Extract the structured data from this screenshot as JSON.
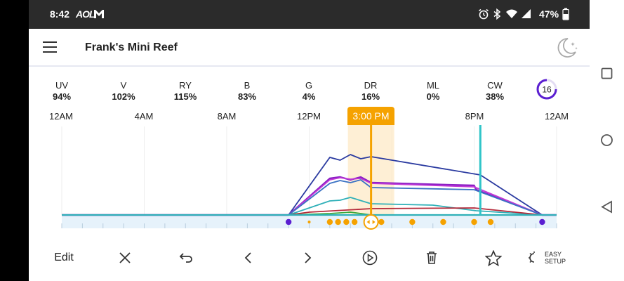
{
  "status_bar": {
    "time": "8:42",
    "aol": "AOL",
    "battery": "47%"
  },
  "header": {
    "title": "Frank's Mini Reef"
  },
  "channels": [
    {
      "name": "UV",
      "value": "94%"
    },
    {
      "name": "V",
      "value": "102%"
    },
    {
      "name": "RY",
      "value": "115%"
    },
    {
      "name": "B",
      "value": "83%"
    },
    {
      "name": "G",
      "value": "4%"
    },
    {
      "name": "DR",
      "value": "16%"
    },
    {
      "name": "ML",
      "value": "0%"
    },
    {
      "name": "CW",
      "value": "38%"
    }
  ],
  "ring_badge": {
    "value": "16"
  },
  "timeline": {
    "ticks": [
      "12AM",
      "4AM",
      "8AM",
      "12PM",
      "8PM",
      "12AM"
    ],
    "cursor_label": "3:00 PM",
    "marker_hour_partial": "M"
  },
  "toolbar": {
    "edit_label": "Edit",
    "easy_setup_line1": "EASY",
    "easy_setup_line2": "SETUP"
  },
  "chart_data": {
    "type": "line",
    "x_unit": "hour of day",
    "xlim": [
      0,
      24
    ],
    "ylim": [
      0,
      120
    ],
    "cursor_x": 15,
    "series": [
      {
        "color": "#2a3aa0",
        "x": [
          0,
          11,
          13,
          13.5,
          14,
          14.5,
          15,
          20.3,
          23.3,
          24
        ],
        "y": [
          0,
          0,
          82,
          78,
          86,
          80,
          83,
          57,
          0,
          0
        ]
      },
      {
        "color": "#8b1fc4",
        "x": [
          0,
          11,
          13,
          13.5,
          14,
          14.5,
          15,
          20,
          20.1,
          23.3,
          24
        ],
        "y": [
          0,
          0,
          52,
          54,
          50,
          54,
          46,
          42,
          36,
          0,
          0
        ]
      },
      {
        "color": "#c03ad6",
        "x": [
          0,
          11,
          13,
          13.5,
          14,
          14.5,
          15,
          20,
          23.3,
          24
        ],
        "y": [
          0,
          0,
          50,
          53,
          51,
          52,
          45,
          40,
          0,
          0
        ]
      },
      {
        "color": "#3a72c4",
        "x": [
          0,
          11,
          13,
          13.5,
          14,
          14.5,
          15,
          20,
          23.3,
          24
        ],
        "y": [
          0,
          0,
          45,
          49,
          46,
          50,
          39,
          36,
          0,
          0
        ]
      },
      {
        "color": "#2fb0b8",
        "x": [
          0,
          11,
          13,
          13.5,
          14,
          15,
          18,
          20.1,
          23.3,
          24
        ],
        "y": [
          0,
          0,
          20,
          21,
          25,
          16,
          14,
          6,
          0,
          0
        ]
      },
      {
        "color": "#b52a3a",
        "x": [
          0,
          11,
          12,
          15,
          20,
          23.3,
          24
        ],
        "y": [
          0,
          0,
          4,
          9,
          10,
          0,
          0
        ]
      },
      {
        "color": "#3aa83a",
        "x": [
          0,
          11,
          13,
          14,
          14.5,
          15,
          23.3,
          24
        ],
        "y": [
          0,
          0,
          2,
          4,
          2,
          0,
          0,
          0
        ]
      }
    ],
    "baseline_color": "#2fb0b8",
    "markers": [
      {
        "x": 11,
        "color": "#5b1fd1"
      },
      {
        "x": 12,
        "color": "#f5a200",
        "small": true
      },
      {
        "x": 13,
        "color": "#f5a200"
      },
      {
        "x": 13.4,
        "color": "#f5a200"
      },
      {
        "x": 13.8,
        "color": "#f5a200"
      },
      {
        "x": 14.2,
        "color": "#f5a200"
      },
      {
        "x": 15.5,
        "color": "#f5a200"
      },
      {
        "x": 17,
        "color": "#f5a200"
      },
      {
        "x": 18.5,
        "color": "#f5a200"
      },
      {
        "x": 20,
        "color": "#f5a200"
      },
      {
        "x": 20.8,
        "color": "#f5a200"
      },
      {
        "x": 23.3,
        "color": "#5b1fd1"
      }
    ],
    "vertical_marker_x": 20.3
  }
}
